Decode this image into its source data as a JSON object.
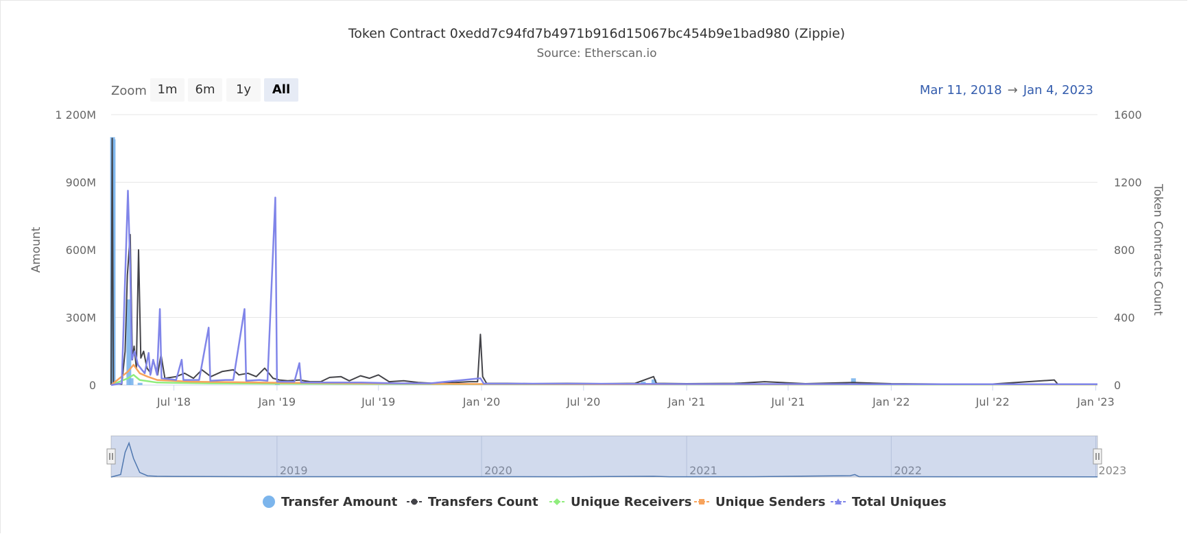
{
  "chart_data": {
    "type": "line",
    "title": "Token Contract 0xedd7c94fd7b4971b916d15067bc454b9e1bad980 (Zippie)",
    "subtitle": "Source: Etherscan.io",
    "y_left": {
      "label": "Amount",
      "ticks": [
        "0",
        "300M",
        "600M",
        "900M",
        "1 200M"
      ],
      "range": [
        0,
        1200000000
      ]
    },
    "y_right": {
      "label": "Token Contracts Count",
      "ticks": [
        "0",
        "400",
        "800",
        "1200",
        "1600"
      ],
      "range": [
        0,
        1600
      ]
    },
    "x_range": [
      "2018-03-11",
      "2023-01-04"
    ],
    "x_ticks": [
      {
        "date": "2018-07-01",
        "label": "Jul '18"
      },
      {
        "date": "2019-01-01",
        "label": "Jan '19"
      },
      {
        "date": "2019-07-01",
        "label": "Jul '19"
      },
      {
        "date": "2020-01-01",
        "label": "Jan '20"
      },
      {
        "date": "2020-07-01",
        "label": "Jul '20"
      },
      {
        "date": "2021-01-01",
        "label": "Jan '21"
      },
      {
        "date": "2021-07-01",
        "label": "Jul '21"
      },
      {
        "date": "2022-01-01",
        "label": "Jan '22"
      },
      {
        "date": "2022-07-01",
        "label": "Jul '22"
      },
      {
        "date": "2023-01-01",
        "label": "Jan '23"
      }
    ],
    "navigator_labels": [
      {
        "date": "2019-01-01",
        "label": "2019"
      },
      {
        "date": "2020-01-01",
        "label": "2020"
      },
      {
        "date": "2021-01-01",
        "label": "2021"
      },
      {
        "date": "2022-01-01",
        "label": "2022"
      },
      {
        "date": "2023-01-01",
        "label": "2023"
      }
    ],
    "grid": true,
    "legend_position": "bottom",
    "series": [
      {
        "name": "Transfer Amount",
        "axis": "left",
        "color": "#7cb5ec",
        "style": "column",
        "marker": "circle",
        "points": [
          [
            "2018-03-13",
            1100000000
          ],
          [
            "2018-03-14",
            1090000000
          ],
          [
            "2018-04-11",
            380000000
          ],
          [
            "2018-04-15",
            30000000
          ],
          [
            "2018-05-01",
            10000000
          ],
          [
            "2019-01-01",
            3000000
          ],
          [
            "2020-10-15",
            15000000
          ],
          [
            "2020-11-03",
            25000000
          ],
          [
            "2021-04-01",
            12000000
          ],
          [
            "2021-10-25",
            30000000
          ],
          [
            "2022-10-20",
            2000000
          ]
        ]
      },
      {
        "name": "Transfers Count",
        "axis": "right",
        "color": "#434348",
        "style": "line",
        "marker": "circle",
        "points": [
          [
            "2018-03-11",
            0
          ],
          [
            "2018-03-13",
            1460
          ],
          [
            "2018-03-15",
            10
          ],
          [
            "2018-03-30",
            5
          ],
          [
            "2018-04-05",
            200
          ],
          [
            "2018-04-09",
            650
          ],
          [
            "2018-04-14",
            890
          ],
          [
            "2018-04-18",
            150
          ],
          [
            "2018-04-21",
            230
          ],
          [
            "2018-04-25",
            100
          ],
          [
            "2018-04-29",
            800
          ],
          [
            "2018-05-03",
            160
          ],
          [
            "2018-05-08",
            200
          ],
          [
            "2018-05-14",
            100
          ],
          [
            "2018-05-21",
            70
          ],
          [
            "2018-05-25",
            150
          ],
          [
            "2018-06-02",
            60
          ],
          [
            "2018-06-08",
            180
          ],
          [
            "2018-06-15",
            40
          ],
          [
            "2018-07-05",
            50
          ],
          [
            "2018-07-20",
            70
          ],
          [
            "2018-08-05",
            40
          ],
          [
            "2018-08-20",
            90
          ],
          [
            "2018-09-05",
            50
          ],
          [
            "2018-09-25",
            80
          ],
          [
            "2018-10-15",
            90
          ],
          [
            "2018-10-25",
            60
          ],
          [
            "2018-11-10",
            70
          ],
          [
            "2018-11-25",
            50
          ],
          [
            "2018-12-10",
            100
          ],
          [
            "2018-12-25",
            40
          ],
          [
            "2019-01-05",
            30
          ],
          [
            "2019-01-20",
            25
          ],
          [
            "2019-02-10",
            30
          ],
          [
            "2019-03-01",
            20
          ],
          [
            "2019-03-20",
            20
          ],
          [
            "2019-04-05",
            45
          ],
          [
            "2019-04-25",
            50
          ],
          [
            "2019-05-10",
            25
          ],
          [
            "2019-05-30",
            55
          ],
          [
            "2019-06-15",
            40
          ],
          [
            "2019-07-01",
            60
          ],
          [
            "2019-07-20",
            20
          ],
          [
            "2019-08-15",
            25
          ],
          [
            "2019-09-10",
            15
          ],
          [
            "2019-10-10",
            10
          ],
          [
            "2019-11-15",
            15
          ],
          [
            "2019-12-10",
            20
          ],
          [
            "2019-12-25",
            20
          ],
          [
            "2019-12-30",
            300
          ],
          [
            "2020-01-03",
            50
          ],
          [
            "2020-01-10",
            10
          ],
          [
            "2020-02-15",
            10
          ],
          [
            "2020-04-01",
            8
          ],
          [
            "2020-06-01",
            10
          ],
          [
            "2020-08-01",
            8
          ],
          [
            "2020-10-01",
            10
          ],
          [
            "2020-11-03",
            50
          ],
          [
            "2020-11-08",
            10
          ],
          [
            "2021-01-01",
            8
          ],
          [
            "2021-04-01",
            10
          ],
          [
            "2021-05-20",
            20
          ],
          [
            "2021-08-01",
            8
          ],
          [
            "2021-10-25",
            15
          ],
          [
            "2022-01-01",
            8
          ],
          [
            "2022-04-01",
            6
          ],
          [
            "2022-07-01",
            6
          ],
          [
            "2022-10-19",
            30
          ],
          [
            "2022-10-25",
            6
          ],
          [
            "2023-01-04",
            5
          ]
        ]
      },
      {
        "name": "Unique Receivers",
        "axis": "right",
        "color": "#90ed7d",
        "style": "line",
        "marker": "diamond",
        "points": [
          [
            "2018-03-11",
            0
          ],
          [
            "2018-04-10",
            40
          ],
          [
            "2018-04-20",
            60
          ],
          [
            "2018-05-01",
            30
          ],
          [
            "2018-06-01",
            15
          ],
          [
            "2018-09-01",
            10
          ],
          [
            "2019-01-01",
            8
          ],
          [
            "2020-01-01",
            5
          ],
          [
            "2021-01-01",
            4
          ],
          [
            "2023-01-04",
            3
          ]
        ]
      },
      {
        "name": "Unique Senders",
        "axis": "right",
        "color": "#f7a35c",
        "style": "line",
        "marker": "square",
        "points": [
          [
            "2018-03-11",
            0
          ],
          [
            "2018-04-10",
            80
          ],
          [
            "2018-04-20",
            120
          ],
          [
            "2018-05-01",
            70
          ],
          [
            "2018-05-15",
            50
          ],
          [
            "2018-06-01",
            30
          ],
          [
            "2018-08-01",
            20
          ],
          [
            "2018-12-01",
            15
          ],
          [
            "2019-06-01",
            10
          ],
          [
            "2020-01-01",
            6
          ],
          [
            "2021-01-01",
            5
          ],
          [
            "2023-01-04",
            4
          ]
        ]
      },
      {
        "name": "Total Uniques",
        "axis": "right",
        "color": "#8085e9",
        "style": "line",
        "marker": "triangle",
        "points": [
          [
            "2018-03-11",
            0
          ],
          [
            "2018-03-30",
            10
          ],
          [
            "2018-04-10",
            1150
          ],
          [
            "2018-04-14",
            700
          ],
          [
            "2018-04-17",
            150
          ],
          [
            "2018-04-22",
            200
          ],
          [
            "2018-04-28",
            120
          ],
          [
            "2018-05-05",
            90
          ],
          [
            "2018-05-10",
            70
          ],
          [
            "2018-05-17",
            190
          ],
          [
            "2018-05-20",
            60
          ],
          [
            "2018-05-25",
            150
          ],
          [
            "2018-06-01",
            60
          ],
          [
            "2018-06-06",
            450
          ],
          [
            "2018-06-09",
            40
          ],
          [
            "2018-07-05",
            30
          ],
          [
            "2018-07-15",
            150
          ],
          [
            "2018-07-18",
            30
          ],
          [
            "2018-08-15",
            30
          ],
          [
            "2018-09-01",
            340
          ],
          [
            "2018-09-04",
            25
          ],
          [
            "2018-10-01",
            30
          ],
          [
            "2018-10-15",
            30
          ],
          [
            "2018-11-04",
            450
          ],
          [
            "2018-11-07",
            25
          ],
          [
            "2018-12-01",
            30
          ],
          [
            "2018-12-15",
            25
          ],
          [
            "2018-12-29",
            1110
          ],
          [
            "2019-01-01",
            20
          ],
          [
            "2019-02-01",
            20
          ],
          [
            "2019-02-10",
            130
          ],
          [
            "2019-02-13",
            15
          ],
          [
            "2019-04-01",
            15
          ],
          [
            "2019-06-01",
            15
          ],
          [
            "2019-08-01",
            10
          ],
          [
            "2019-10-01",
            10
          ],
          [
            "2019-12-30",
            40
          ],
          [
            "2020-01-05",
            8
          ],
          [
            "2020-06-01",
            8
          ],
          [
            "2021-01-01",
            6
          ],
          [
            "2021-06-01",
            6
          ],
          [
            "2022-01-01",
            5
          ],
          [
            "2023-01-04",
            5
          ]
        ]
      }
    ],
    "navigator_series": [
      [
        "2018-03-11",
        0
      ],
      [
        "2018-03-28",
        80
      ],
      [
        "2018-04-05",
        800
      ],
      [
        "2018-04-12",
        1100
      ],
      [
        "2018-04-20",
        600
      ],
      [
        "2018-05-01",
        150
      ],
      [
        "2018-05-15",
        40
      ],
      [
        "2018-06-01",
        25
      ],
      [
        "2018-07-01",
        20
      ],
      [
        "2018-09-01",
        15
      ],
      [
        "2019-01-01",
        10
      ],
      [
        "2019-06-01",
        10
      ],
      [
        "2020-01-01",
        12
      ],
      [
        "2020-06-01",
        8
      ],
      [
        "2020-11-03",
        25
      ],
      [
        "2020-12-01",
        8
      ],
      [
        "2021-05-01",
        10
      ],
      [
        "2021-10-20",
        45
      ],
      [
        "2021-10-28",
        80
      ],
      [
        "2021-11-05",
        10
      ],
      [
        "2022-06-01",
        8
      ],
      [
        "2023-01-04",
        6
      ]
    ]
  },
  "toolbar": {
    "zoom_label": "Zoom",
    "zoom_buttons": [
      "1m",
      "6m",
      "1y",
      "All"
    ],
    "active_zoom": "All",
    "range_from": "Mar 11, 2018",
    "range_to": "Jan 4, 2023",
    "range_arrow": "→"
  },
  "colors": {
    "grid": "#e6e6e6",
    "axis_text": "#666666",
    "navigator_mask": "rgba(102,133,194,0.3)",
    "navigator_line": "#4572a7"
  }
}
